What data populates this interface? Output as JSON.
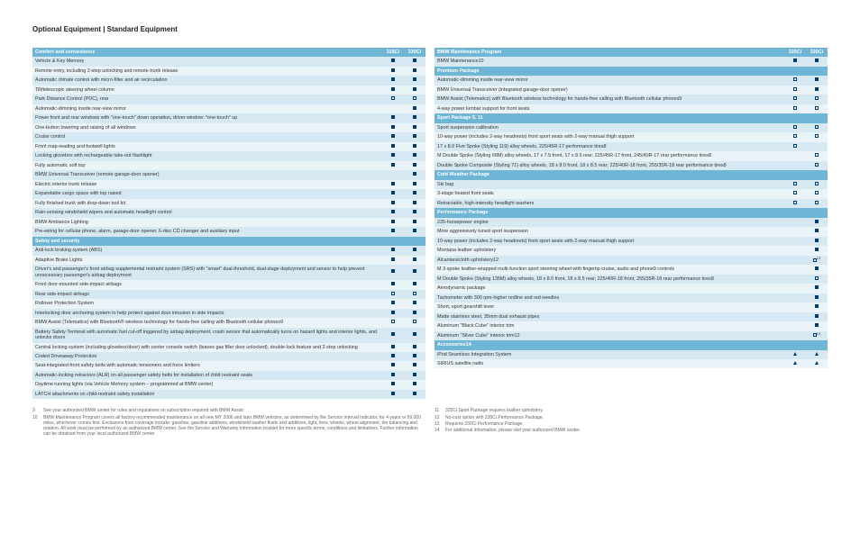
{
  "title": "Optional Equipment | Standard Equipment",
  "col1_headers": [
    "325Ci",
    "330Ci"
  ],
  "col2_headers": [
    "325Ci",
    "330Ci"
  ],
  "sections_left": [
    {
      "title": "Comfort and convenience",
      "rows": [
        {
          "label": "Vehicle & Key Memory",
          "m": [
            "std",
            "std"
          ]
        },
        {
          "label": "Remote entry, including 2-step unlocking and remote trunk release",
          "m": [
            "std",
            "std"
          ]
        },
        {
          "label": "Automatic climate control with micro-filter and air recirculation",
          "m": [
            "std",
            "std"
          ]
        },
        {
          "label": "Tilt/telescopic steering wheel column",
          "m": [
            "std",
            "std"
          ]
        },
        {
          "label": "Park Distance Control (PDC), rear",
          "m": [
            "opt",
            "opt"
          ]
        },
        {
          "label": "Automatic-dimming inside rear-view mirror",
          "m": [
            "",
            "std"
          ]
        },
        {
          "label": "Power front and rear windows with \"one-touch\" down operation, driver window: \"one-touch\" up",
          "m": [
            "std",
            "std"
          ]
        },
        {
          "label": "One-button lowering and raising of all windows",
          "m": [
            "std",
            "std"
          ]
        },
        {
          "label": "Cruise control",
          "m": [
            "std",
            "std"
          ]
        },
        {
          "label": "Front map-reading and footwell lights",
          "m": [
            "std",
            "std"
          ]
        },
        {
          "label": "Locking glovebox with rechargeable take-out flashlight",
          "m": [
            "std",
            "std"
          ]
        },
        {
          "label": "Fully automatic soft top",
          "m": [
            "std",
            "std"
          ]
        },
        {
          "label": "BMW Universal Transceiver (remote garage-door opener)",
          "m": [
            "",
            "std"
          ]
        },
        {
          "label": "Electric interior trunk release",
          "m": [
            "std",
            "std"
          ]
        },
        {
          "label": "Expandable cargo space with top raised",
          "m": [
            "std",
            "std"
          ]
        },
        {
          "label": "Fully finished trunk with drop-down tool kit",
          "m": [
            "std",
            "std"
          ]
        },
        {
          "label": "Rain-sensing windshield wipers and automatic headlight control",
          "m": [
            "std",
            "std"
          ]
        },
        {
          "label": "BMW Ambiance Lighting",
          "m": [
            "std",
            "std"
          ]
        },
        {
          "label": "Pre-wiring for cellular phone, alarm, garage-door opener, 6-disc CD changer and auxiliary input",
          "m": [
            "std",
            "std"
          ]
        }
      ]
    },
    {
      "title": "Safety and security",
      "rows": [
        {
          "label": "Anti-lock braking system (ABS)",
          "m": [
            "std",
            "std"
          ]
        },
        {
          "label": "Adaptive Brake Lights",
          "m": [
            "std",
            "std"
          ]
        },
        {
          "label": "Driver's and passenger's front airbag supplemental restraint system (SRS) with \"smart\" dual-threshold, dual-stage deployment and sensor to help prevent unnecessary passenger's airbag deployment",
          "m": [
            "std",
            "std"
          ]
        },
        {
          "label": "Front door-mounted side-impact airbags",
          "m": [
            "std",
            "std"
          ]
        },
        {
          "label": "Rear side-impact airbags",
          "m": [
            "opt",
            "opt"
          ]
        },
        {
          "label": "Rollover Protection System",
          "m": [
            "std",
            "std"
          ]
        },
        {
          "label": "Interlocking door anchoring system to help protect against door intrusion in side impacts",
          "m": [
            "std",
            "std"
          ]
        },
        {
          "label": "BMW Assist (Telematics) with Bluetooth® wireless technology for hands-free calling with Bluetooth cellular phones9",
          "m": [
            "opt",
            "opt"
          ]
        },
        {
          "label": "Battery Safety Terminal with automatic fuel cut-off triggered by airbag deployment; crash sensor that automatically turns on hazard lights and interior lights, and unlocks doors",
          "m": [
            "std",
            "std"
          ]
        },
        {
          "label": "Central locking system (including glovebox/door) with center console switch (leaves gas filler door unlocked), double-lock feature and 2-step unlocking",
          "m": [
            "std",
            "std"
          ]
        },
        {
          "label": "Coded Driveaway Protection",
          "m": [
            "std",
            "std"
          ]
        },
        {
          "label": "Seat-integrated front safety belts with automatic tensioners and force limiters",
          "m": [
            "std",
            "std"
          ]
        },
        {
          "label": "Automatic-locking retractors (ALR) on all passenger safety belts for installation of child restraint seats",
          "m": [
            "std",
            "std"
          ]
        },
        {
          "label": "Daytime running lights (via Vehicle Memory system – programmed at BMW center)",
          "m": [
            "std",
            "std"
          ]
        },
        {
          "label": "LATCH attachments on child-restraint safety installation",
          "m": [
            "std",
            "std"
          ]
        }
      ]
    }
  ],
  "sections_right": [
    {
      "title": "BMW Maintenance Program",
      "rows": [
        {
          "label": "BMW Maintenance10",
          "m": [
            "std",
            "std"
          ]
        }
      ]
    },
    {
      "title": "Premium Package",
      "rows": [
        {
          "label": "Automatic-dimming inside rear-view mirror",
          "m": [
            "opt",
            "std"
          ]
        },
        {
          "label": "BMW Universal Transceiver (integrated garage-door opener)",
          "m": [
            "opt",
            "std"
          ]
        },
        {
          "label": "BMW Assist (Telematics) with Bluetooth wireless technology for hands-free calling with Bluetooth cellular phones9",
          "m": [
            "opt",
            "opt"
          ]
        },
        {
          "label": "4-way power lumbar support for front seats",
          "m": [
            "opt",
            "opt"
          ]
        }
      ]
    },
    {
      "title": "Sport Package 5, 11",
      "rows": [
        {
          "label": "Sport suspension calibration",
          "m": [
            "opt",
            "opt"
          ]
        },
        {
          "label": "10-way power (includes 2-way headrests) front sport seats with 2-way manual thigh support",
          "m": [
            "opt",
            "opt"
          ]
        },
        {
          "label": "17 x 8.0 Five Spoke (Styling 119) alloy wheels, 225/45R-17 performance tires8",
          "m": [
            "opt",
            ""
          ]
        },
        {
          "label": "M Double Spoke (Styling 68M) alloy wheels, 17 x 7.5 front, 17 x 8.5 rear; 225/45R-17 front, 245/40R-17 rear performance tires8",
          "m": [
            "",
            "opt"
          ]
        },
        {
          "label": "Double Spoke Composite (Styling 71) alloy wheels, 18 x 8.0 front, 18 x 8.5 rear; 225/40R-18 front, 255/35R-18 rear performance tires8",
          "m": [
            "",
            "opt"
          ]
        }
      ]
    },
    {
      "title": "Cold Weather Package",
      "rows": [
        {
          "label": "Ski bag",
          "m": [
            "opt",
            "opt"
          ]
        },
        {
          "label": "3-stage heated front seats",
          "m": [
            "opt",
            "opt"
          ]
        },
        {
          "label": "Retractable, high-intensity headlight washers",
          "m": [
            "opt",
            "opt"
          ]
        }
      ]
    },
    {
      "title": "Performance Package",
      "rows": [
        {
          "label": "235-horsepower engine",
          "m": [
            "",
            "std"
          ]
        },
        {
          "label": "More aggressively tuned sport suspension",
          "m": [
            "",
            "std"
          ]
        },
        {
          "label": "10-way power (includes 2-way headrests) front sport seats with 2-way manual thigh support",
          "m": [
            "",
            "std"
          ]
        },
        {
          "label": "Montana leather upholstery",
          "m": [
            "",
            "std"
          ]
        },
        {
          "label": "Alcantara/cloth upholstery12",
          "m": [
            "",
            "opt13"
          ]
        },
        {
          "label": "M 3-spoke leather-wrapped multi-function sport steering wheel with fingertip cruise, audio and phone9 controls",
          "m": [
            "",
            "std"
          ]
        },
        {
          "label": "M Double Spoke (Styling 135M) alloy wheels, 18 x 8.0 front, 18 x 8.5 rear; 225/40R-18 front, 255/35R-18 rear performance tires8",
          "m": [
            "",
            "opt"
          ]
        },
        {
          "label": "Aerodynamic package",
          "m": [
            "",
            "std"
          ]
        },
        {
          "label": "Tachometer with 300 rpm-higher redline and red needles",
          "m": [
            "",
            "std"
          ]
        },
        {
          "label": "Short, sport gearshift lever",
          "m": [
            "",
            "std"
          ]
        },
        {
          "label": "Matte stainless steel, 35mm dual exhaust pipes",
          "m": [
            "",
            "std"
          ]
        },
        {
          "label": "Aluminum \"Black Cube\" interior trim",
          "m": [
            "",
            "std"
          ]
        },
        {
          "label": "Aluminum \"Silver Cube\" interior trim12",
          "m": [
            "",
            "opt13"
          ]
        }
      ]
    },
    {
      "title": "Accessories14",
      "rows": [
        {
          "label": "iPod Seamless Integration System",
          "m": [
            "tri",
            "tri"
          ]
        },
        {
          "label": "SIRIUS satellite radio",
          "m": [
            "tri",
            "tri"
          ]
        }
      ]
    }
  ],
  "footnotes_left": [
    {
      "n": "9",
      "t": "See your authorized BMW center for rules and regulations on subscription required with BMW Assist."
    },
    {
      "n": "10",
      "t": "BMW Maintenance Program covers all factory-recommended maintenance on all new MY 2006 and later BMW vehicles, as determined by the Service Interval Indicator, for 4 years or 50,000 miles, whichever comes first. Exclusions from coverage include: gasoline, gasoline additives, windshield washer fluids and additives, light, tires, wheels, wheel alignment, tire balancing and rotation. All work must be performed by an authorized BMW center. See the Service and Warranty Information booklet for more specific terms, conditions and limitations. Further information can be obtained from your local authorized BMW center."
    }
  ],
  "footnotes_right": [
    {
      "n": "11",
      "t": "325Ci Sport Package requires leather upholstery."
    },
    {
      "n": "12",
      "t": "No-cost option with 330Ci Performance Package."
    },
    {
      "n": "13",
      "t": "Requires 330Ci Performance Package."
    },
    {
      "n": "14",
      "t": "For additional information, please visit your authorized BMW center."
    }
  ],
  "colors": {
    "header_bg": "#6fb5d6",
    "row_even": "#d6e9f2",
    "row_odd": "#eaf3f8",
    "mark": "#003c6e"
  }
}
